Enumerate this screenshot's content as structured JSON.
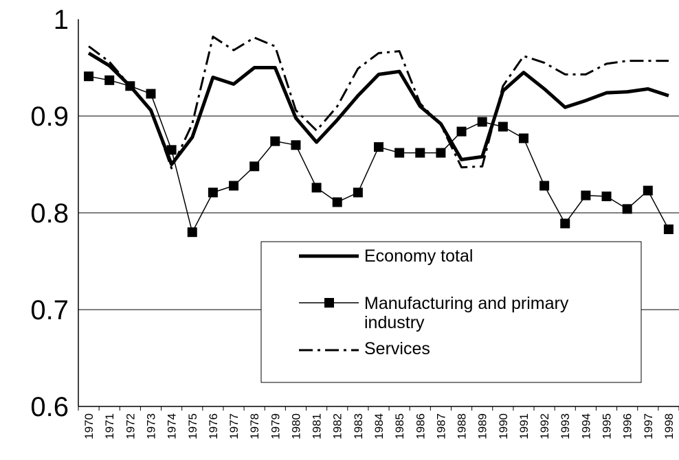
{
  "chart_data": {
    "type": "line",
    "categories": [
      "1970",
      "1971",
      "1972",
      "1973",
      "1974",
      "1975",
      "1976",
      "1977",
      "1978",
      "1979",
      "1980",
      "1981",
      "1982",
      "1983",
      "1984",
      "1985",
      "1986",
      "1987",
      "1988",
      "1989",
      "1990",
      "1991",
      "1992",
      "1993",
      "1994",
      "1995",
      "1996",
      "1997",
      "1998"
    ],
    "series": [
      {
        "name": "Economy total",
        "color": "#000000",
        "style": "solid-thick",
        "values": [
          0.965,
          0.952,
          0.931,
          0.906,
          0.85,
          0.878,
          0.94,
          0.933,
          0.95,
          0.95,
          0.898,
          0.873,
          0.896,
          0.921,
          0.943,
          0.946,
          0.91,
          0.892,
          0.855,
          0.858,
          0.926,
          0.945,
          0.928,
          0.909,
          0.916,
          0.924,
          0.925,
          0.928,
          0.921
        ]
      },
      {
        "name": "Manufacturing and primary industry",
        "color": "#000000",
        "style": "square-markers",
        "values": [
          0.941,
          0.937,
          0.931,
          0.923,
          0.865,
          0.78,
          0.821,
          0.828,
          0.848,
          0.874,
          0.87,
          0.826,
          0.811,
          0.821,
          0.868,
          0.862,
          0.862,
          0.862,
          0.884,
          0.894,
          0.889,
          0.877,
          0.828,
          0.789,
          0.818,
          0.817,
          0.804,
          0.823,
          0.783
        ]
      },
      {
        "name": "Services",
        "color": "#000000",
        "style": "dash-dot",
        "values": [
          0.972,
          0.956,
          0.931,
          0.906,
          0.846,
          0.892,
          0.982,
          0.968,
          0.981,
          0.972,
          0.906,
          0.885,
          0.91,
          0.949,
          0.965,
          0.967,
          0.913,
          0.891,
          0.847,
          0.848,
          0.931,
          0.962,
          0.955,
          0.943,
          0.943,
          0.954,
          0.957,
          0.957,
          0.957
        ]
      }
    ],
    "ylim": [
      0.6,
      1
    ],
    "yticks": [
      0.6,
      0.7,
      0.8,
      0.9,
      1
    ],
    "grid": true
  }
}
